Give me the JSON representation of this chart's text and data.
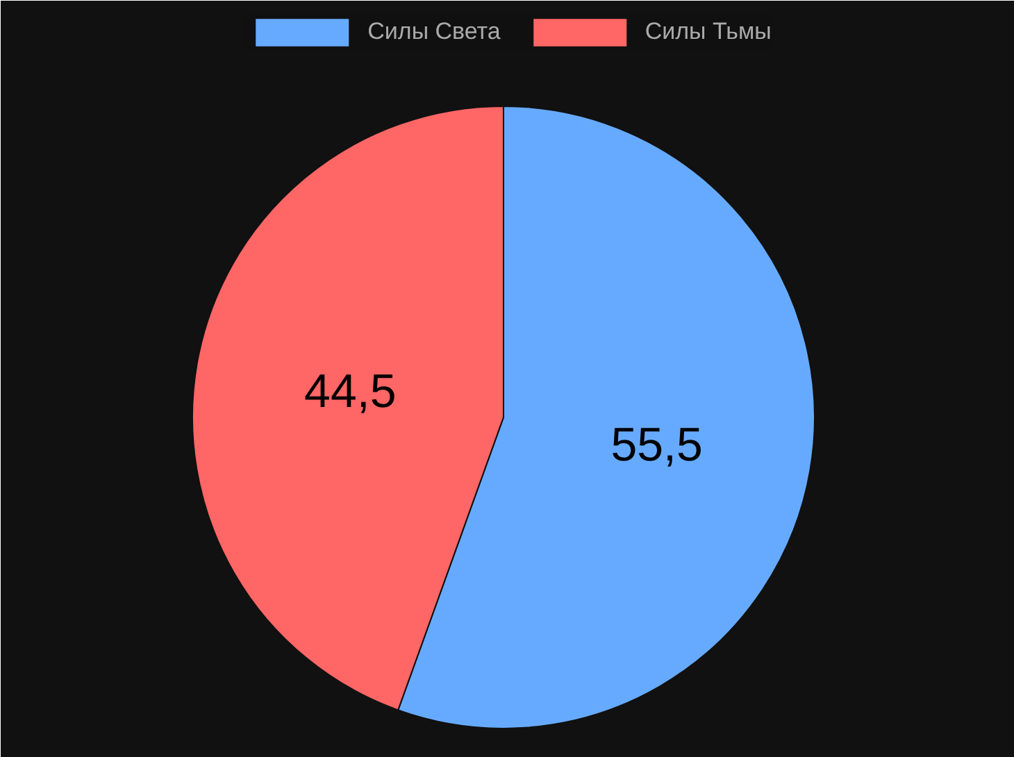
{
  "chart_data": {
    "type": "pie",
    "categories": [
      "Силы Света",
      "Силы Тьмы"
    ],
    "values": [
      55.5,
      44.5
    ],
    "colors": [
      "#66aaff",
      "#ff6666"
    ],
    "value_labels": [
      "55,5",
      "44,5"
    ],
    "legend": "top"
  }
}
